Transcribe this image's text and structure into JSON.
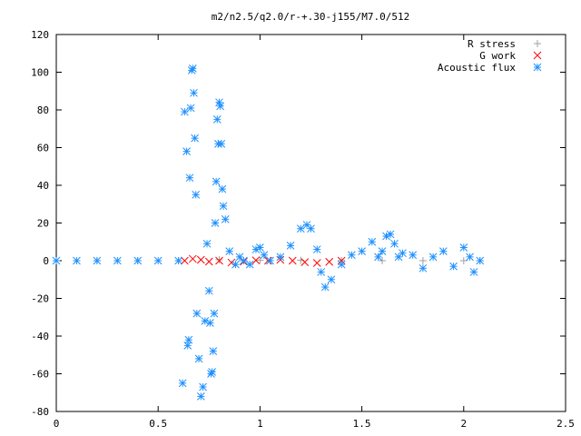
{
  "chart_data": {
    "type": "scatter",
    "title": "m2/n2.5/q2.0/r-+.30-j155/M7.0/512",
    "xlabel": "",
    "ylabel": "",
    "xlim": [
      0,
      2.5
    ],
    "ylim": [
      -80,
      120
    ],
    "x_ticks": [
      0,
      0.5,
      1,
      1.5,
      2,
      2.5
    ],
    "x_tick_labels": [
      "0",
      "0.5",
      "1",
      "1.5",
      "2",
      "2.5"
    ],
    "y_ticks": [
      -80,
      -60,
      -40,
      -20,
      0,
      20,
      40,
      60,
      80,
      100,
      120
    ],
    "y_tick_labels": [
      "-80",
      "-60",
      "-40",
      "-20",
      "0",
      "20",
      "40",
      "60",
      "80",
      "100",
      "120"
    ],
    "grid": false,
    "legend_position": "top-right",
    "series": [
      {
        "name": "R stress",
        "marker": "plus",
        "color": "#a0a0a0",
        "x": [
          0.0,
          0.2,
          0.4,
          0.6,
          0.8,
          1.0,
          1.2,
          1.4,
          1.6,
          1.8,
          2.0,
          2.08
        ],
        "y": [
          0,
          0,
          0,
          0,
          0.5,
          0.3,
          0.2,
          0.1,
          0,
          0,
          0,
          0
        ]
      },
      {
        "name": "G work",
        "marker": "cross",
        "color": "#ff0000",
        "x": [
          0.63,
          0.67,
          0.71,
          0.75,
          0.8,
          0.86,
          0.92,
          0.98,
          1.04,
          1.1,
          1.16,
          1.22,
          1.28,
          1.34,
          1.4
        ],
        "y": [
          0,
          1,
          0.5,
          -0.5,
          0,
          -1,
          -0.5,
          0.2,
          0,
          0.5,
          0,
          -0.8,
          -1.2,
          -0.6,
          0
        ]
      },
      {
        "name": "Acoustic flux",
        "marker": "star",
        "color": "#1e90ff",
        "x": [
          0.0,
          0.1,
          0.2,
          0.3,
          0.4,
          0.5,
          0.6,
          0.62,
          0.63,
          0.64,
          0.645,
          0.65,
          0.655,
          0.66,
          0.665,
          0.67,
          0.675,
          0.68,
          0.685,
          0.69,
          0.7,
          0.71,
          0.72,
          0.73,
          0.74,
          0.75,
          0.755,
          0.76,
          0.765,
          0.77,
          0.775,
          0.78,
          0.785,
          0.79,
          0.795,
          0.8,
          0.805,
          0.81,
          0.815,
          0.82,
          0.83,
          0.85,
          0.88,
          0.9,
          0.92,
          0.95,
          0.98,
          1.0,
          1.02,
          1.05,
          1.1,
          1.15,
          1.2,
          1.23,
          1.25,
          1.28,
          1.3,
          1.32,
          1.35,
          1.4,
          1.45,
          1.5,
          1.55,
          1.58,
          1.6,
          1.62,
          1.64,
          1.66,
          1.68,
          1.7,
          1.75,
          1.8,
          1.85,
          1.9,
          1.95,
          2.0,
          2.03,
          2.05,
          2.08
        ],
        "y": [
          0,
          0,
          0,
          0,
          0,
          0,
          0,
          -65,
          79,
          58,
          -45,
          -42,
          44,
          81,
          101,
          102,
          89,
          65,
          35,
          -28,
          -52,
          -72,
          -67,
          -32,
          9,
          -16,
          -33,
          -60,
          -59,
          -48,
          -28,
          20,
          42,
          75,
          62,
          84,
          82,
          62,
          38,
          29,
          22,
          5,
          -2,
          2,
          0,
          -2,
          6,
          7,
          3,
          0,
          2,
          8,
          17,
          19,
          17,
          6,
          -6,
          -14,
          -10,
          -2,
          3,
          5,
          10,
          2,
          5,
          13,
          14,
          9,
          2,
          4,
          3,
          -4,
          2,
          5,
          -3,
          7,
          2,
          -6,
          0
        ]
      }
    ]
  }
}
